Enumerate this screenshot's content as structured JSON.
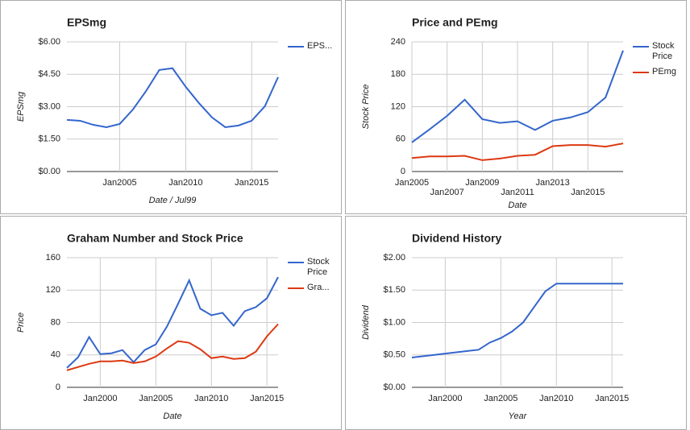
{
  "chart_data": [
    {
      "type": "line",
      "title": "EPSmg",
      "x_label": "Date / Jul99",
      "y_label": "EPSmg",
      "x": [
        2001,
        2002,
        2003,
        2004,
        2005,
        2006,
        2007,
        2008,
        2009,
        2010,
        2011,
        2012,
        2013,
        2014,
        2015,
        2016,
        2017
      ],
      "xlim": [
        2001,
        2017
      ],
      "xticks": [
        {
          "value": 2005,
          "label": "Jan2005"
        },
        {
          "value": 2010,
          "label": "Jan2010"
        },
        {
          "value": 2015,
          "label": "Jan2015"
        }
      ],
      "ylim": [
        0,
        6
      ],
      "yticks": [
        {
          "value": 0,
          "label": "$0.00"
        },
        {
          "value": 1.5,
          "label": "$1.50"
        },
        {
          "value": 3,
          "label": "$3.00"
        },
        {
          "value": 4.5,
          "label": "$4.50"
        },
        {
          "value": 6,
          "label": "$6.00"
        }
      ],
      "grid": true,
      "legend": "right",
      "series": [
        {
          "name": "EPS...",
          "color": "#3366cc",
          "values": [
            2.39,
            2.35,
            2.16,
            2.05,
            2.2,
            2.87,
            3.73,
            4.7,
            4.78,
            3.92,
            3.17,
            2.5,
            2.05,
            2.13,
            2.35,
            3.02,
            4.37
          ]
        }
      ]
    },
    {
      "type": "line",
      "title": "Price and PEmg",
      "x_label": "Date",
      "y_label": "Stock Price",
      "x": [
        2005,
        2006,
        2007,
        2008,
        2009,
        2010,
        2011,
        2012,
        2013,
        2014,
        2015,
        2016,
        2017
      ],
      "xlim": [
        2005,
        2017
      ],
      "xticks": [
        {
          "value": 2005,
          "label": "Jan2005"
        },
        {
          "value": 2007,
          "label": "Jan2007"
        },
        {
          "value": 2009,
          "label": "Jan2009"
        },
        {
          "value": 2011,
          "label": "Jan2011"
        },
        {
          "value": 2013,
          "label": "Jan2013"
        },
        {
          "value": 2015,
          "label": "Jan2015"
        }
      ],
      "ylim": [
        0,
        240
      ],
      "yticks": [
        0,
        60,
        120,
        180,
        240
      ],
      "grid": true,
      "legend": "right",
      "series": [
        {
          "name": "Stock Price",
          "color": "#3366cc",
          "values": [
            54,
            78,
            103,
            133,
            97,
            90,
            93,
            77,
            94,
            100,
            110,
            137,
            224
          ]
        },
        {
          "name": "PEmg",
          "color": "#dc3912",
          "values": [
            25,
            28,
            28,
            29,
            21,
            24,
            29,
            31,
            47,
            49,
            49,
            46,
            52
          ]
        }
      ]
    },
    {
      "type": "line",
      "title": "Graham Number and Stock Price",
      "x_label": "Date",
      "y_label": "Price",
      "x": [
        1997,
        1998,
        1999,
        2000,
        2001,
        2002,
        2003,
        2004,
        2005,
        2006,
        2007,
        2008,
        2009,
        2010,
        2011,
        2012,
        2013,
        2014,
        2015,
        2016
      ],
      "xlim": [
        1997,
        2016
      ],
      "xticks": [
        {
          "value": 2000,
          "label": "Jan2000"
        },
        {
          "value": 2005,
          "label": "Jan2005"
        },
        {
          "value": 2010,
          "label": "Jan2010"
        },
        {
          "value": 2015,
          "label": "Jan2015"
        }
      ],
      "ylim": [
        0,
        160
      ],
      "yticks": [
        0,
        40,
        80,
        120,
        160
      ],
      "grid": true,
      "legend": "right",
      "series": [
        {
          "name": "Stock Price",
          "color": "#3366cc",
          "values": [
            24,
            37,
            62,
            41,
            42,
            46,
            31,
            46,
            53,
            75,
            103,
            132,
            97,
            89,
            92,
            76,
            94,
            99,
            110,
            136
          ]
        },
        {
          "name": "Gra...",
          "color": "#dc3912",
          "values": [
            21,
            25,
            29,
            32,
            32,
            33,
            30,
            32,
            38,
            48,
            57,
            55,
            47,
            36,
            38,
            35,
            36,
            44,
            63,
            78
          ]
        }
      ]
    },
    {
      "type": "line",
      "title": "Dividend History",
      "x_label": "Year",
      "y_label": "Dividend",
      "x": [
        1997,
        1998,
        1999,
        2000,
        2001,
        2002,
        2003,
        2004,
        2005,
        2006,
        2007,
        2008,
        2009,
        2010,
        2011,
        2012,
        2013,
        2014,
        2015,
        2016
      ],
      "xlim": [
        1997,
        2016
      ],
      "xticks": [
        {
          "value": 2000,
          "label": "Jan2000"
        },
        {
          "value": 2005,
          "label": "Jan2005"
        },
        {
          "value": 2010,
          "label": "Jan2010"
        },
        {
          "value": 2015,
          "label": "Jan2015"
        }
      ],
      "ylim": [
        0,
        2
      ],
      "yticks": [
        {
          "value": 0,
          "label": "$0.00"
        },
        {
          "value": 0.5,
          "label": "$0.50"
        },
        {
          "value": 1,
          "label": "$1.00"
        },
        {
          "value": 1.5,
          "label": "$1.50"
        },
        {
          "value": 2,
          "label": "$2.00"
        }
      ],
      "grid": true,
      "series": [
        {
          "name": "Dividend",
          "color": "#3366cc",
          "values": [
            0.46,
            0.48,
            0.5,
            0.52,
            0.54,
            0.56,
            0.58,
            0.69,
            0.76,
            0.86,
            1.0,
            1.24,
            1.48,
            1.6,
            1.6,
            1.6,
            1.6,
            1.6,
            1.6,
            1.6
          ]
        }
      ]
    }
  ]
}
